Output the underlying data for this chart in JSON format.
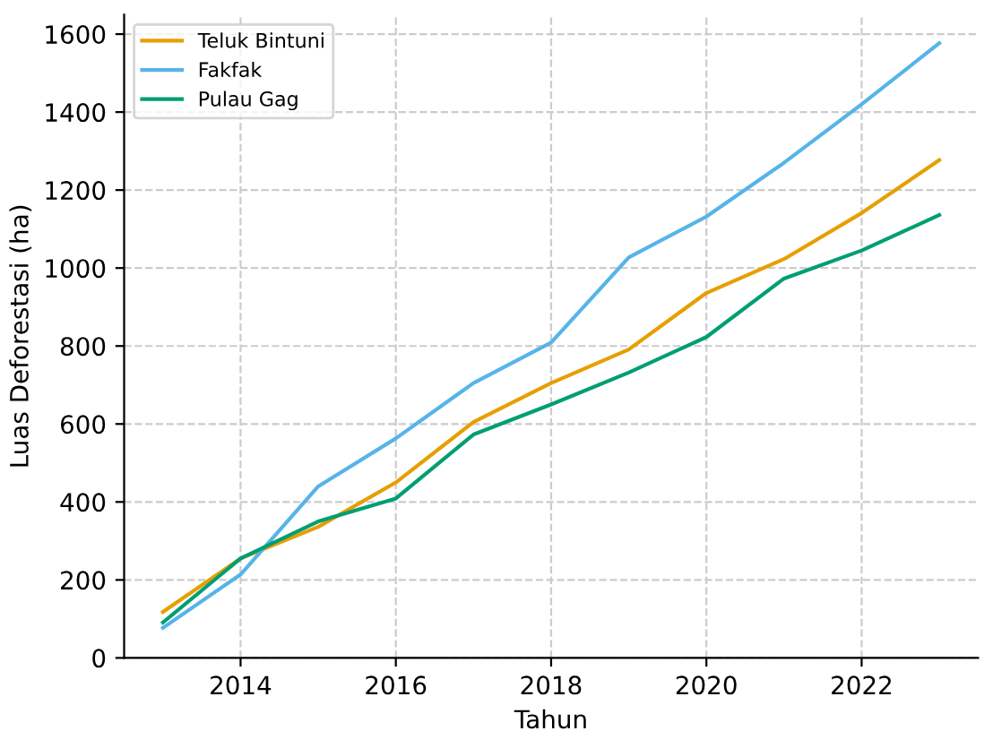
{
  "chart_data": {
    "type": "line",
    "xlabel": "Tahun",
    "ylabel": "Luas Deforestasi (ha)",
    "x": [
      2013,
      2014,
      2015,
      2016,
      2017,
      2018,
      2019,
      2020,
      2021,
      2022,
      2023
    ],
    "series": [
      {
        "name": "Teluk Bintuni",
        "color": "#e69f00",
        "values": [
          118,
          255,
          336,
          450,
          605,
          705,
          791,
          936,
          1023,
          1141,
          1277
        ]
      },
      {
        "name": "Fakfak",
        "color": "#56b4e9",
        "values": [
          77,
          214,
          440,
          563,
          705,
          809,
          1027,
          1132,
          1270,
          1420,
          1577
        ]
      },
      {
        "name": "Pulau Gag",
        "color": "#009e73",
        "values": [
          91,
          255,
          350,
          409,
          573,
          650,
          732,
          823,
          973,
          1045,
          1136
        ]
      }
    ],
    "xlim": [
      2012.5,
      2023.5
    ],
    "ylim": [
      0,
      1650
    ],
    "xticks": [
      2014,
      2016,
      2018,
      2020,
      2022
    ],
    "yticks": [
      0,
      200,
      400,
      600,
      800,
      1000,
      1200,
      1400,
      1600
    ],
    "grid": true,
    "legend": "top left",
    "marker": "none",
    "line_style": "solid"
  }
}
